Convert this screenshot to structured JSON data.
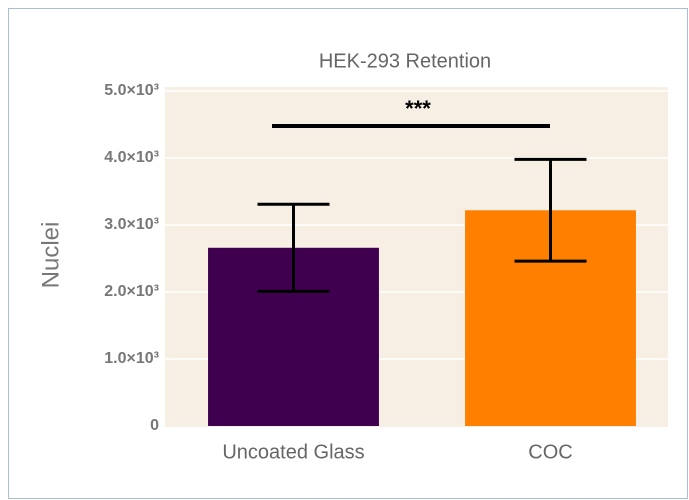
{
  "chart_data": {
    "type": "bar",
    "title": "HEK-293 Retention",
    "ylabel": "Nuclei",
    "categories": [
      "Uncoated Glass",
      "COC"
    ],
    "series": [
      {
        "name": "Nuclei",
        "colors": [
          "#3f0050",
          "#ff7f00"
        ],
        "values": [
          2660,
          3220
        ],
        "errors": [
          650,
          760
        ]
      }
    ],
    "ylim": [
      0,
      5000
    ],
    "yticks": [
      0,
      {
        "value": 1000,
        "label": "1.0×10³"
      },
      {
        "value": 2000,
        "label": "2.0×10³"
      },
      {
        "value": 3000,
        "label": "3.0×10³"
      },
      {
        "value": 4000,
        "label": "4.0×10³"
      },
      {
        "value": 5000,
        "label": "5.0×10³"
      }
    ],
    "grid": true,
    "annotations": [
      "***"
    ]
  }
}
